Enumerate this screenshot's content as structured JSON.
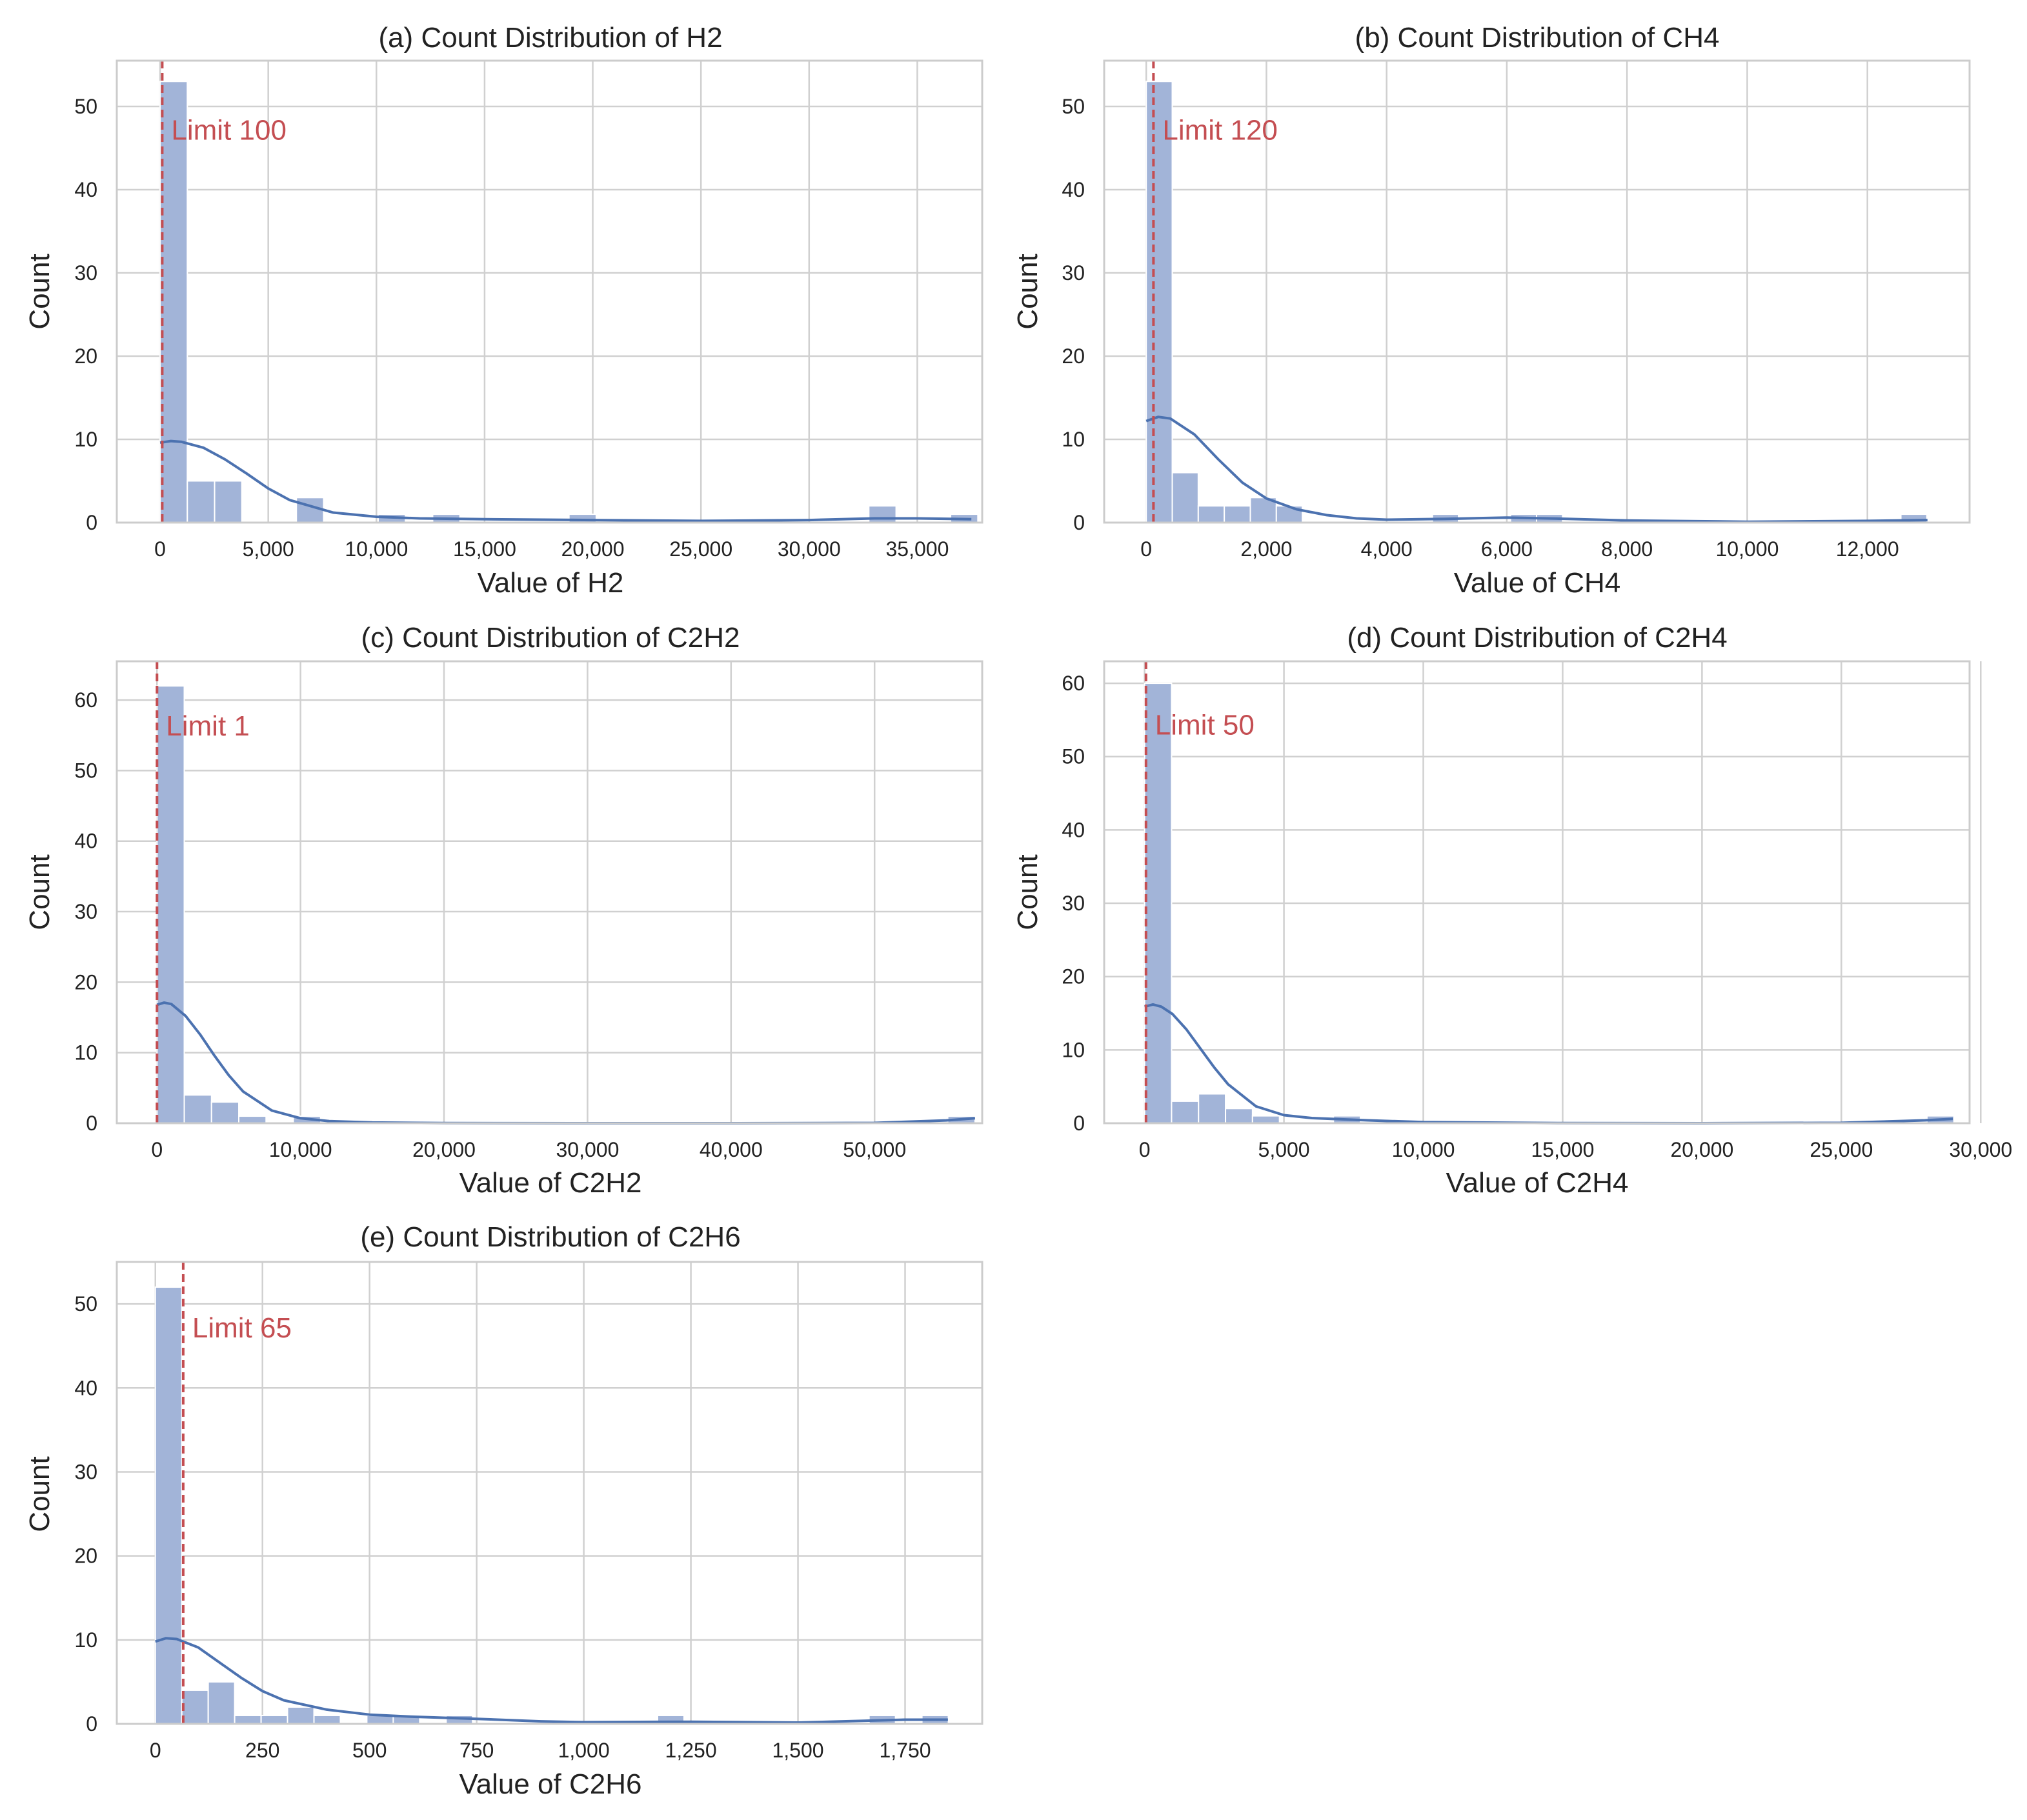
{
  "chart_data": [
    {
      "type": "bar",
      "title": "(a) Count Distribution of H2",
      "xlabel": "Value of H2",
      "ylabel": "Count",
      "xlim": [
        -2000,
        38000
      ],
      "ylim": [
        0,
        55.5
      ],
      "xticks": [
        0,
        5000,
        10000,
        15000,
        20000,
        25000,
        30000,
        35000
      ],
      "xtick_labels": [
        "0",
        "5,000",
        "10,000",
        "15,000",
        "20,000",
        "25,000",
        "30,000",
        "35,000"
      ],
      "yticks": [
        0,
        10,
        20,
        30,
        40,
        50
      ],
      "ytick_labels": [
        "0",
        "10",
        "20",
        "30",
        "40",
        "50"
      ],
      "grid": true,
      "bin_start": 0,
      "bin_width": 1260,
      "counts": [
        53,
        5,
        5,
        0,
        0,
        3,
        0,
        0,
        1,
        0,
        1,
        0,
        0,
        0,
        0,
        1,
        0,
        0,
        0,
        0,
        0,
        0,
        0,
        0,
        0,
        0,
        2,
        0,
        0,
        1
      ],
      "kde": {
        "x": [
          0,
          500,
          1000,
          2000,
          3000,
          4000,
          5000,
          6000,
          8000,
          10000,
          12000,
          15000,
          20000,
          25000,
          30000,
          33000,
          35000,
          37500
        ],
        "y": [
          9.6,
          9.8,
          9.7,
          9.0,
          7.6,
          5.9,
          4.1,
          2.7,
          1.2,
          0.7,
          0.5,
          0.4,
          0.3,
          0.2,
          0.3,
          0.5,
          0.5,
          0.4
        ]
      },
      "limit": {
        "value": 100,
        "label": "Limit 100",
        "label_y": 46
      }
    },
    {
      "type": "bar",
      "title": "(b) Count Distribution of CH4",
      "xlabel": "Value of CH4",
      "ylabel": "Count",
      "xlim": [
        -700,
        13700
      ],
      "ylim": [
        0,
        55.5
      ],
      "xticks": [
        0,
        2000,
        4000,
        6000,
        8000,
        10000,
        12000
      ],
      "xtick_labels": [
        "0",
        "2,000",
        "4,000",
        "6,000",
        "8,000",
        "10,000",
        "12,000"
      ],
      "yticks": [
        0,
        10,
        20,
        30,
        40,
        50
      ],
      "ytick_labels": [
        "0",
        "10",
        "20",
        "30",
        "40",
        "50"
      ],
      "grid": true,
      "bin_start": 0,
      "bin_width": 433,
      "counts": [
        53,
        6,
        2,
        2,
        3,
        2,
        0,
        0,
        0,
        0,
        0,
        1,
        0,
        0,
        1,
        1,
        0,
        0,
        0,
        0,
        0,
        0,
        0,
        0,
        0,
        0,
        0,
        0,
        0,
        1
      ],
      "kde": {
        "x": [
          0,
          200,
          400,
          800,
          1200,
          1600,
          2000,
          2500,
          3000,
          3500,
          4000,
          5000,
          6000,
          7000,
          8000,
          10000,
          12000,
          13000
        ],
        "y": [
          12.2,
          12.7,
          12.5,
          10.6,
          7.6,
          4.8,
          2.9,
          1.6,
          0.9,
          0.5,
          0.35,
          0.45,
          0.6,
          0.45,
          0.25,
          0.1,
          0.2,
          0.3
        ]
      },
      "limit": {
        "value": 120,
        "label": "Limit 120",
        "label_y": 46
      }
    },
    {
      "type": "bar",
      "title": "(c) Count Distribution of C2H2",
      "xlabel": "Value of C2H2",
      "ylabel": "Count",
      "xlim": [
        -2800,
        57500
      ],
      "ylim": [
        0,
        65.5
      ],
      "xticks": [
        0,
        10000,
        20000,
        30000,
        40000,
        50000
      ],
      "xtick_labels": [
        "0",
        "10,000",
        "20,000",
        "30,000",
        "40,000",
        "50,000"
      ],
      "yticks": [
        0,
        10,
        20,
        30,
        40,
        50,
        60
      ],
      "ytick_labels": [
        "0",
        "10",
        "20",
        "30",
        "40",
        "50",
        "60"
      ],
      "grid": true,
      "bin_start": 0,
      "bin_width": 1900,
      "counts": [
        62,
        4,
        3,
        1,
        0,
        1,
        0,
        0,
        0,
        0,
        0,
        0,
        0,
        0,
        0,
        0,
        0,
        0,
        0,
        0,
        0,
        0,
        0,
        0,
        0,
        0,
        0,
        0,
        0,
        1
      ],
      "kde": {
        "x": [
          0,
          500,
          1000,
          2000,
          3000,
          4000,
          5000,
          6000,
          8000,
          10000,
          12000,
          15000,
          20000,
          30000,
          40000,
          50000,
          55000,
          57000
        ],
        "y": [
          16.8,
          17.1,
          16.9,
          15.2,
          12.6,
          9.6,
          6.8,
          4.5,
          1.8,
          0.7,
          0.3,
          0.1,
          0.02,
          0,
          0,
          0.05,
          0.4,
          0.7
        ]
      },
      "limit": {
        "value": 1,
        "label": "Limit 1",
        "label_y": 55
      }
    },
    {
      "type": "bar",
      "title": "(d) Count Distribution of C2H4",
      "xlabel": "Value of C2H4",
      "ylabel": "Count",
      "xlim": [
        -1450,
        29600
      ],
      "ylim": [
        0,
        63
      ],
      "xticks": [
        0,
        5000,
        10000,
        15000,
        20000,
        25000,
        30000
      ],
      "xtick_labels": [
        "0",
        "5,000",
        "10,000",
        "15,000",
        "20,000",
        "25,000",
        "30,000"
      ],
      "yticks": [
        0,
        10,
        20,
        30,
        40,
        50,
        60
      ],
      "ytick_labels": [
        "0",
        "10",
        "20",
        "30",
        "40",
        "50",
        "60"
      ],
      "grid": true,
      "bin_start": 0,
      "bin_width": 968,
      "counts": [
        60,
        3,
        4,
        2,
        1,
        0,
        0,
        1,
        0,
        0,
        0,
        0,
        0,
        0,
        0,
        0,
        0,
        0,
        0,
        0,
        0,
        0,
        0,
        0,
        0,
        0,
        0,
        0,
        0,
        1
      ],
      "kde": {
        "x": [
          0,
          300,
          600,
          1000,
          1500,
          2000,
          2500,
          3000,
          4000,
          5000,
          6000,
          8000,
          10000,
          15000,
          20000,
          25000,
          28000,
          29000
        ],
        "y": [
          15.9,
          16.2,
          15.9,
          14.9,
          12.8,
          10.2,
          7.6,
          5.3,
          2.3,
          1.1,
          0.7,
          0.4,
          0.15,
          0.02,
          0,
          0.05,
          0.4,
          0.6
        ]
      },
      "limit": {
        "value": 50,
        "label": "Limit 50",
        "label_y": 53
      }
    },
    {
      "type": "bar",
      "title": "(e) Count Distribution of C2H6",
      "xlabel": "Value of C2H6",
      "ylabel": "Count",
      "xlim": [
        -90,
        1930
      ],
      "ylim": [
        0,
        55
      ],
      "xticks": [
        0,
        250,
        500,
        750,
        1000,
        1250,
        1500,
        1750
      ],
      "xtick_labels": [
        "0",
        "250",
        "500",
        "750",
        "1,000",
        "1,250",
        "1,500",
        "1,750"
      ],
      "yticks": [
        0,
        10,
        20,
        30,
        40,
        50
      ],
      "ytick_labels": [
        "0",
        "10",
        "20",
        "30",
        "40",
        "50"
      ],
      "grid": true,
      "bin_start": 0,
      "bin_width": 61.7,
      "counts": [
        52,
        4,
        5,
        1,
        1,
        2,
        1,
        0,
        1,
        1,
        0,
        1,
        0,
        0,
        0,
        0,
        0,
        0,
        0,
        1,
        0,
        0,
        0,
        0,
        0,
        0,
        0,
        1,
        0,
        1
      ],
      "kde": {
        "x": [
          0,
          25,
          50,
          100,
          150,
          200,
          250,
          300,
          400,
          500,
          600,
          750,
          900,
          1000,
          1250,
          1500,
          1750,
          1850
        ],
        "y": [
          9.8,
          10.2,
          10.1,
          9.1,
          7.3,
          5.5,
          3.9,
          2.8,
          1.7,
          1.1,
          0.85,
          0.6,
          0.3,
          0.2,
          0.25,
          0.15,
          0.5,
          0.5
        ]
      },
      "limit": {
        "value": 65,
        "label": "Limit 65",
        "label_y": 46
      }
    }
  ]
}
